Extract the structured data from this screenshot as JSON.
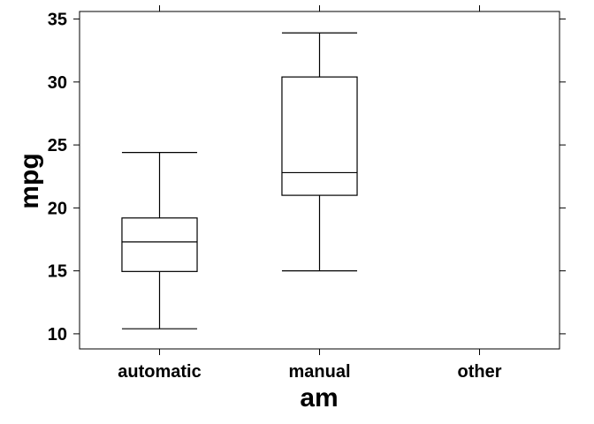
{
  "chart_data": {
    "type": "box",
    "title": "",
    "xlabel": "am",
    "ylabel": "mpg",
    "categories": [
      "automatic",
      "manual",
      "other"
    ],
    "ylim": [
      8.8,
      35.6
    ],
    "yticks": [
      10,
      15,
      20,
      25,
      30,
      35
    ],
    "grid": false,
    "boxes": [
      {
        "category": "automatic",
        "min": 10.4,
        "q1": 14.95,
        "median": 17.3,
        "q3": 19.2,
        "max": 24.4
      },
      {
        "category": "manual",
        "min": 15.0,
        "q1": 21.0,
        "median": 22.8,
        "q3": 30.4,
        "max": 33.9
      },
      {
        "category": "other",
        "min": null,
        "q1": null,
        "median": null,
        "q3": null,
        "max": null
      }
    ]
  }
}
